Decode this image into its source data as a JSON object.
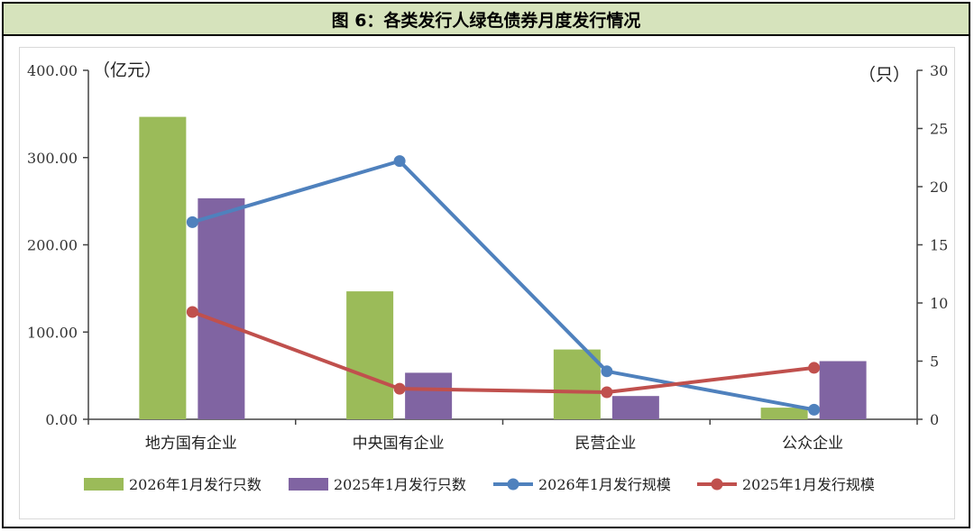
{
  "title": "图 6：各类发行人绿色债券月度发行情况",
  "chart_data": {
    "type": "bar",
    "categories": [
      "地方国有企业",
      "中央国有企业",
      "民营企业",
      "公众企业"
    ],
    "left_unit": "（亿元）",
    "right_unit": "（只）",
    "left_ylim": [
      0,
      400
    ],
    "right_ylim": [
      0,
      30
    ],
    "left_ticks": [
      "0.00",
      "100.00",
      "200.00",
      "300.00",
      "400.00"
    ],
    "right_ticks": [
      "0",
      "5",
      "10",
      "15",
      "20",
      "25",
      "30"
    ],
    "grid": false,
    "legend_position": "bottom",
    "series": [
      {
        "name": "2026年1月发行只数",
        "kind": "bar",
        "axis": "right",
        "color": "#9bbb59",
        "values": [
          26,
          11,
          6,
          1
        ]
      },
      {
        "name": "2025年1月发行只数",
        "kind": "bar",
        "axis": "right",
        "color": "#8064a2",
        "values": [
          19,
          4,
          2,
          5
        ]
      },
      {
        "name": "2026年1月发行规模",
        "kind": "line",
        "axis": "left",
        "color": "#4f81bd",
        "values": [
          226,
          296,
          55,
          11
        ]
      },
      {
        "name": "2025年1月发行规模",
        "kind": "line",
        "axis": "left",
        "color": "#c0504d",
        "values": [
          123,
          35,
          31,
          59
        ]
      }
    ]
  }
}
